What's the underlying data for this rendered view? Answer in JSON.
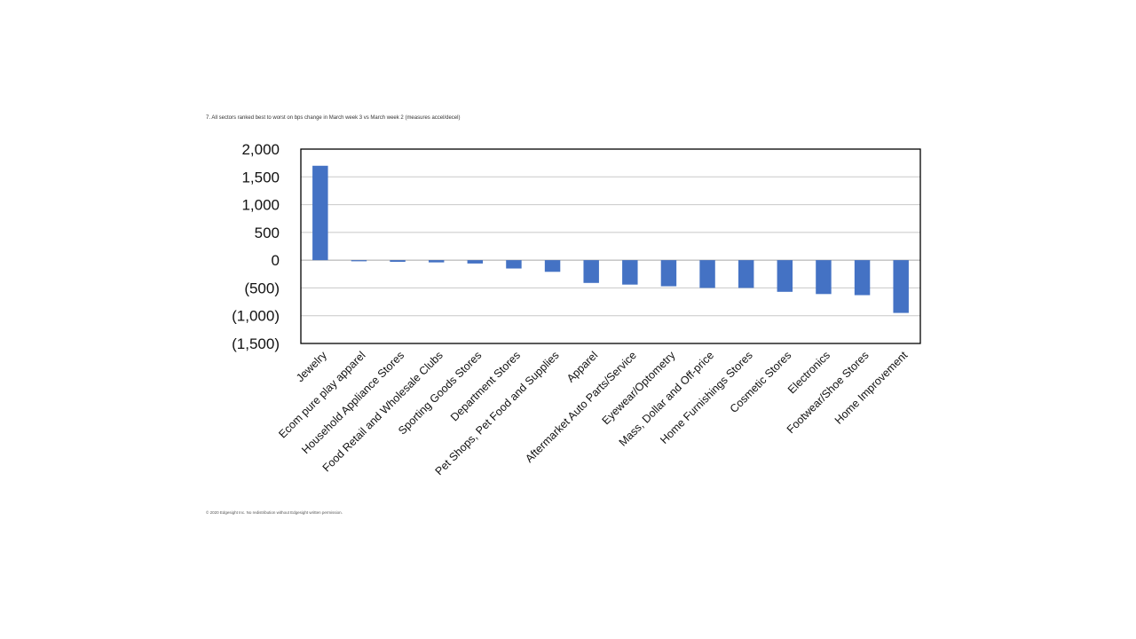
{
  "page": {
    "title": "7. All sectors ranked best to worst on bps change in March week 3 vs March week 2 (measures accel/decel)",
    "footnote": "© 2020 Edgesight Inc. No redistribution without Edgesight written permission."
  },
  "colors": {
    "bar": "#4472c4",
    "grid": "#c8c8c8",
    "frame": "#000000",
    "zero_line": "#a6a6a6"
  },
  "chart_data": {
    "type": "bar",
    "title": "",
    "xlabel": "",
    "ylabel": "",
    "ylim": [
      -1500,
      2000
    ],
    "yticks": [
      2000,
      1500,
      1000,
      500,
      0,
      -500,
      -1000,
      -1500
    ],
    "ytick_labels": [
      "2,000",
      "1,500",
      "1,000",
      "500",
      "0",
      "(500)",
      "(1,000)",
      "(1,500)"
    ],
    "grid": true,
    "legend": "none",
    "categories": [
      "Jewelry",
      "Ecom pure play apparel",
      "Household Appliance Stores",
      "Food Retail and Wholesale Clubs",
      "Sporting Goods Stores",
      "Department Stores",
      "Pet Shops, Pet Food and Supplies",
      "Apparel",
      "Aftermarket Auto Parts/Service",
      "Eyewear/Optometry",
      "Mass, Dollar and Off-price",
      "Home Furnishings Stores",
      "Cosmetic Stores",
      "Electronics",
      "Footwear/Shoe Stores",
      "Home Improvement"
    ],
    "values": [
      1700,
      -20,
      -30,
      -40,
      -60,
      -150,
      -210,
      -410,
      -440,
      -470,
      -500,
      -500,
      -570,
      -610,
      -630,
      -950
    ]
  }
}
